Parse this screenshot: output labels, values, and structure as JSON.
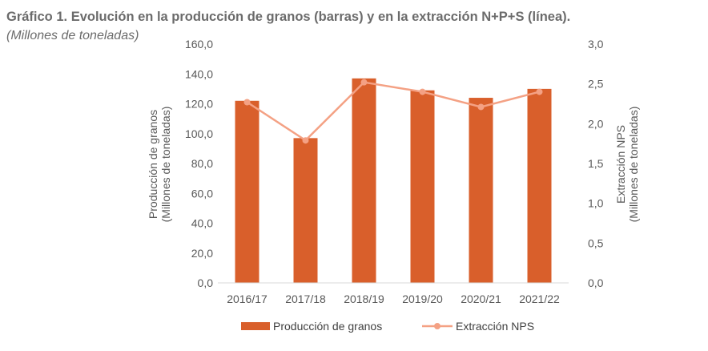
{
  "title": "Gráfico 1. Evolución en la producción de granos (barras) y en la extracción N+P+S (línea).",
  "subtitle": "(Millones de toneladas)",
  "chart_data": {
    "type": "bar",
    "categories": [
      "2016/17",
      "2017/18",
      "2018/19",
      "2019/20",
      "2020/21",
      "2021/22"
    ],
    "series": [
      {
        "name": "Producción de granos",
        "type": "bar",
        "axis": "left",
        "color": "#d95f2b",
        "values": [
          122,
          97,
          137,
          129,
          124,
          130
        ]
      },
      {
        "name": "Extracción NPS",
        "type": "line",
        "axis": "right",
        "color": "#f4a184",
        "values": [
          2.27,
          1.79,
          2.52,
          2.4,
          2.21,
          2.4
        ]
      }
    ],
    "ylabel": [
      "Producción de granos",
      "(Millones de toneladas)"
    ],
    "y2label": [
      "Extracción NPS",
      "(Millones de toneladas)"
    ],
    "ylim": [
      0,
      160
    ],
    "y2lim": [
      0,
      3
    ],
    "yticks": [
      "0,0",
      "20,0",
      "40,0",
      "60,0",
      "80,0",
      "100,0",
      "120,0",
      "140,0",
      "160,0"
    ],
    "y2ticks": [
      "0,0",
      "0,5",
      "1,0",
      "1,5",
      "2,0",
      "2,5",
      "3,0"
    ],
    "grid": false,
    "legend_position": "bottom"
  }
}
